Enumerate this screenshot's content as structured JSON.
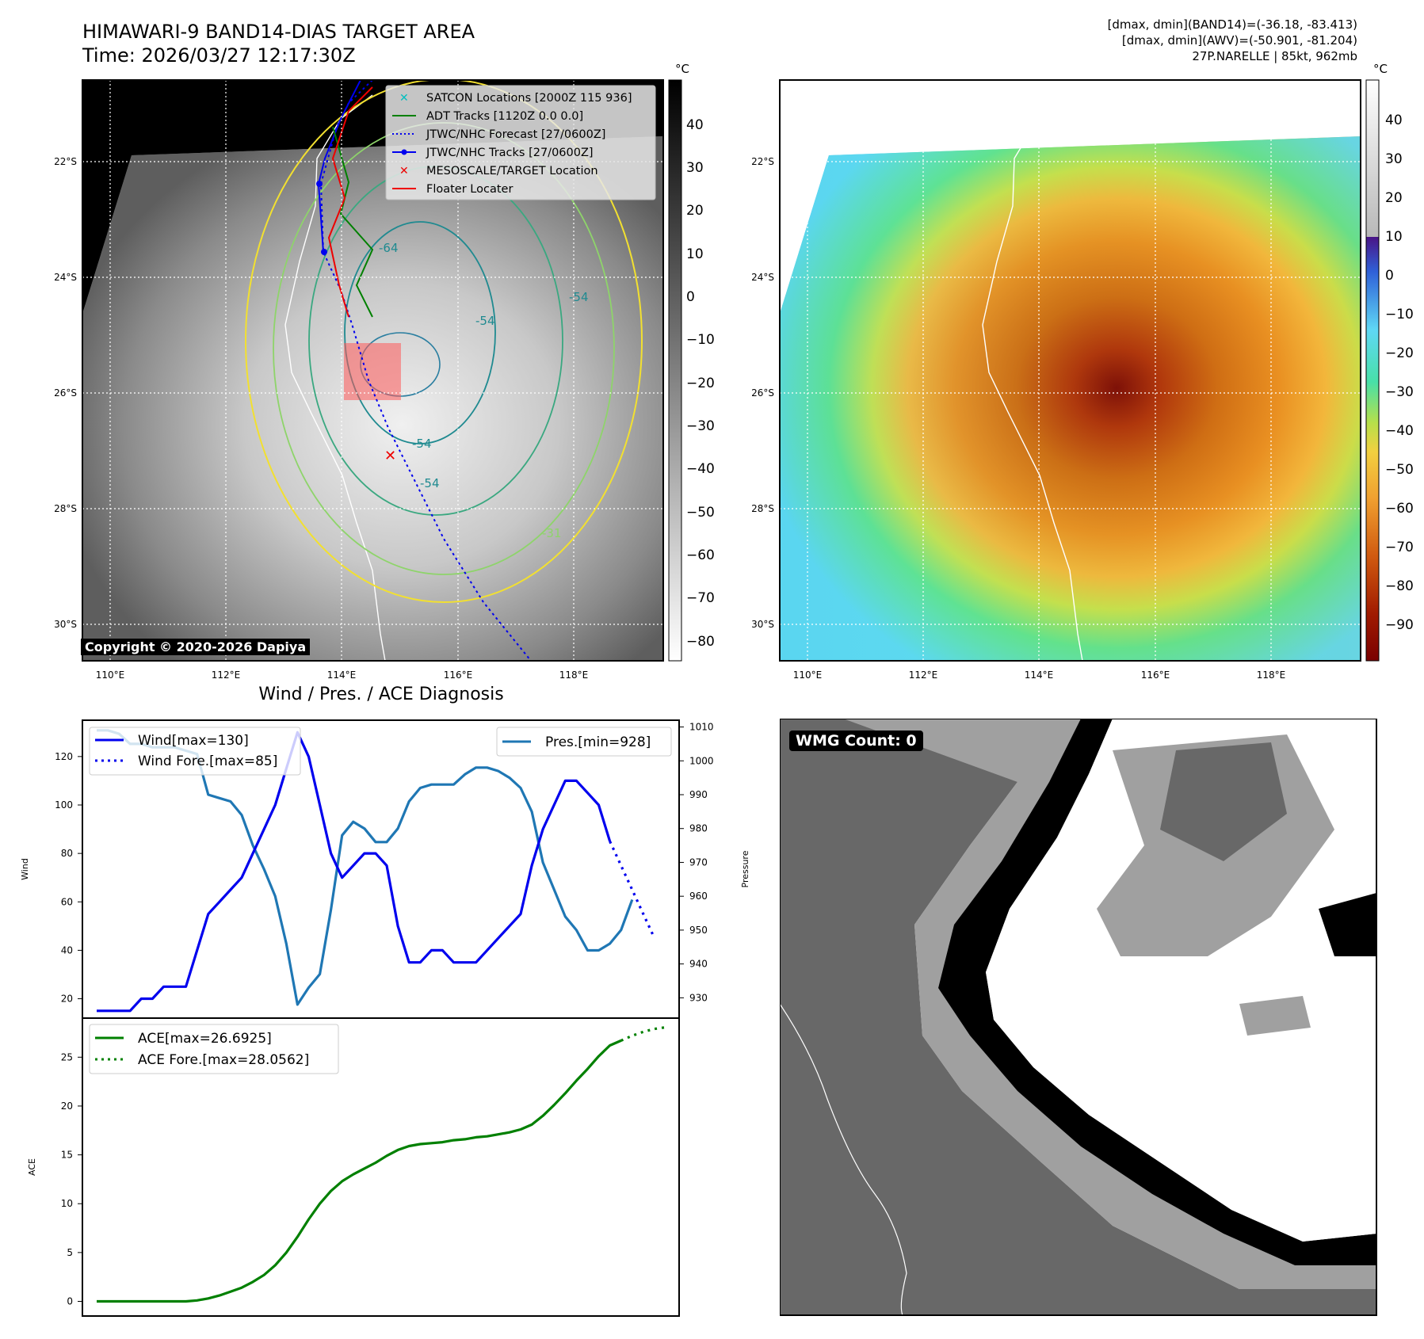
{
  "header": {
    "title_line1": "HIMAWARI-9 BAND14-DIAS TARGET AREA",
    "title_line2": "Time: 2026/03/27 12:17:30Z",
    "stat_line1": "[dmax, dmin](BAND14)=(-36.18, -83.413)",
    "stat_line2": "[dmax, dmin](AWV)=(-50.901, -81.204)",
    "stat_line3": "27P.NARELLE | 85kt, 962mb"
  },
  "map": {
    "lat_labels": [
      "22°S",
      "24°S",
      "26°S",
      "28°S",
      "30°S"
    ],
    "lon_labels": [
      "110°E",
      "112°E",
      "114°E",
      "116°E",
      "118°E"
    ],
    "contour_labels": [
      "-64",
      "-64",
      "-54",
      "-54",
      "-54",
      "-54",
      "-31",
      "-31"
    ],
    "copyright": "Copyright © 2020-2026 Dapiya",
    "legend": [
      "SATCON Locations [2000Z 115 936]",
      "ADT Tracks [1120Z 0.0 0.0]",
      "JTWC/NHC Forecast [27/0600Z]",
      "JTWC/NHC Tracks [27/0600Z]",
      "MESOSCALE/TARGET Location",
      "Floater Locater"
    ]
  },
  "colorbars": {
    "unit": "°C",
    "gray_ticks": [
      "40",
      "30",
      "20",
      "10",
      "0",
      "−10",
      "−20",
      "−30",
      "−40",
      "−50",
      "−60",
      "−70",
      "−80"
    ],
    "color_ticks": [
      "40",
      "30",
      "20",
      "10",
      "0",
      "−10",
      "−20",
      "−30",
      "−40",
      "−50",
      "−60",
      "−70",
      "−80",
      "−90"
    ]
  },
  "wmg": {
    "label": "WMG Count: 0"
  },
  "chart_data": [
    {
      "type": "line",
      "title": "Wind / Pres. / ACE Diagnosis",
      "ylabel": "Wind",
      "y2label": "Pressure",
      "ylim": [
        12,
        135
      ],
      "y2lim": [
        924,
        1012
      ],
      "yticks": [
        20,
        40,
        60,
        80,
        100,
        120
      ],
      "y2ticks": [
        930,
        940,
        950,
        960,
        970,
        980,
        990,
        1000,
        1010
      ],
      "series": [
        {
          "name": "Wind[max=130]",
          "color": "#0000ee",
          "style": "solid",
          "values": [
            15,
            15,
            15,
            15,
            20,
            20,
            25,
            25,
            25,
            40,
            55,
            60,
            65,
            70,
            80,
            90,
            100,
            115,
            130,
            120,
            100,
            80,
            70,
            75,
            80,
            80,
            75,
            50,
            35,
            35,
            40,
            40,
            35,
            35,
            35,
            40,
            45,
            50,
            55,
            75,
            90,
            100,
            110,
            110,
            105,
            100,
            85
          ]
        },
        {
          "name": "Wind Fore.[max=85]",
          "color": "#0000ee",
          "style": "dotted",
          "values": [
            85,
            75,
            65,
            55,
            45
          ],
          "x_start": 46
        },
        {
          "name": "Pres.[min=928]",
          "color": "#1f77b4",
          "style": "solid",
          "axis": "right",
          "values": [
            1009,
            1009,
            1008,
            1005,
            1005,
            1004,
            1004,
            1004,
            1003,
            1002,
            990,
            989,
            988,
            984,
            975,
            968,
            960,
            946,
            928,
            933,
            937,
            956,
            978,
            982,
            980,
            976,
            976,
            980,
            988,
            992,
            993,
            993,
            993,
            996,
            998,
            998,
            997,
            995,
            992,
            985,
            970,
            962,
            954,
            950,
            944,
            944,
            946,
            950,
            959
          ]
        }
      ]
    },
    {
      "type": "line",
      "ylabel": "ACE",
      "ylim": [
        -1.5,
        29
      ],
      "yticks": [
        0,
        5,
        10,
        15,
        20,
        25
      ],
      "series": [
        {
          "name": "ACE[max=26.6925]",
          "color": "#008000",
          "style": "solid",
          "values": [
            0,
            0,
            0,
            0,
            0,
            0,
            0,
            0,
            0,
            0.1,
            0.3,
            0.6,
            1,
            1.4,
            2,
            2.7,
            3.7,
            5,
            6.6,
            8.4,
            10,
            11.3,
            12.3,
            13,
            13.6,
            14.2,
            14.9,
            15.5,
            15.9,
            16.1,
            16.2,
            16.3,
            16.5,
            16.6,
            16.8,
            16.9,
            17.1,
            17.3,
            17.6,
            18.1,
            19,
            20.1,
            21.3,
            22.6,
            23.8,
            25.1,
            26.2,
            26.7
          ]
        },
        {
          "name": "ACE Fore.[max=28.0562]",
          "color": "#008000",
          "style": "dotted",
          "values": [
            26.7,
            27.2,
            27.6,
            27.9,
            28.06
          ],
          "x_start": 47
        }
      ]
    }
  ]
}
